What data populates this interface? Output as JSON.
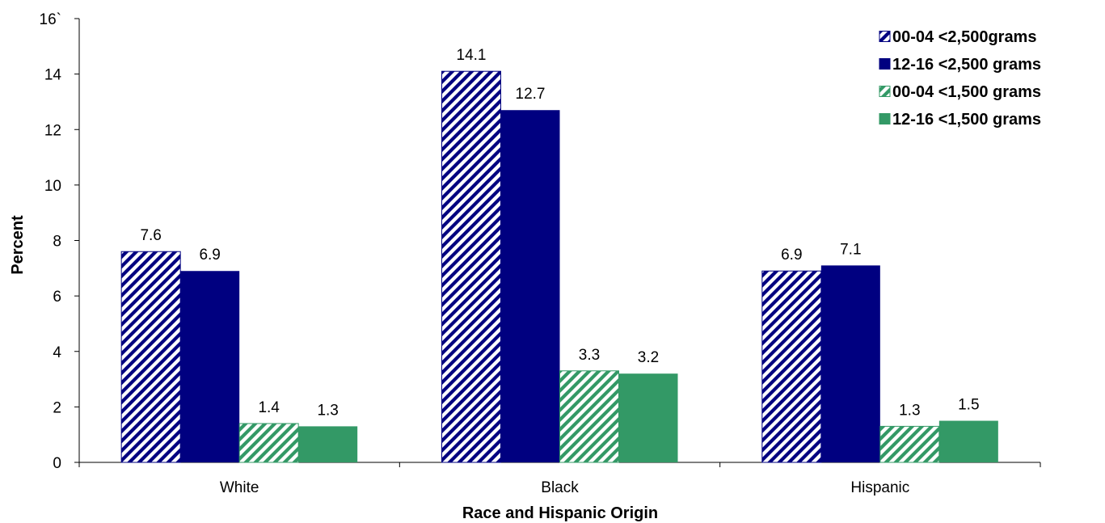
{
  "chart_data": {
    "type": "bar",
    "categories": [
      "White",
      "Black",
      "Hispanic"
    ],
    "series": [
      {
        "name": "00-04 <2,500grams",
        "values": [
          7.6,
          14.1,
          6.9
        ],
        "color": "#000080",
        "pattern": "hatched"
      },
      {
        "name": "12-16 <2,500 grams",
        "values": [
          6.9,
          12.7,
          7.1
        ],
        "color": "#000080",
        "pattern": "solid"
      },
      {
        "name": "00-04 <1,500 grams",
        "values": [
          1.4,
          3.3,
          1.3
        ],
        "color": "#339966",
        "pattern": "hatched"
      },
      {
        "name": "12-16 <1,500 grams",
        "values": [
          1.3,
          3.2,
          1.5
        ],
        "color": "#339966",
        "pattern": "solid"
      }
    ],
    "xlabel": "Race and Hispanic Origin",
    "ylabel": "Percent",
    "ylim": [
      0,
      16
    ],
    "yticks": [
      "0",
      "2",
      "4",
      "6",
      "8",
      "10",
      "12",
      "14",
      "16`"
    ],
    "legend_position": "top-right",
    "grid": false
  }
}
